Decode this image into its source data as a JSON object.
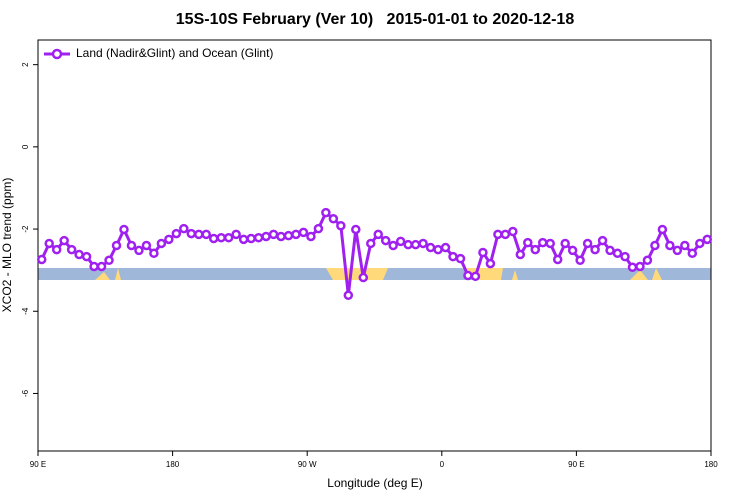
{
  "chart_data": {
    "type": "line",
    "title": "15S-10S February (Ver 10)   2015-01-01 to 2020-12-18",
    "x_label": "Longitude (deg E)",
    "y_label": "XCO2 - MLO trend (ppm)",
    "x": [
      92.5,
      97.5,
      102.5,
      107.5,
      112.5,
      117.5,
      122.5,
      127.5,
      132.5,
      137.5,
      142.5,
      147.5,
      152.5,
      157.5,
      162.5,
      167.5,
      172.5,
      177.5,
      182.5,
      187.5,
      192.5,
      197.5,
      202.5,
      207.5,
      212.5,
      217.5,
      222.5,
      227.5,
      232.5,
      237.5,
      242.5,
      247.5,
      252.5,
      257.5,
      262.5,
      267.5,
      272.5,
      277.5,
      282.5,
      287.5,
      292.5,
      297.5,
      302.5,
      307.5,
      312.5,
      317.5,
      322.5,
      327.5,
      332.5,
      337.5,
      342.5,
      347.5,
      352.5,
      357.5,
      362.5,
      367.5,
      372.5,
      377.5,
      382.5,
      387.5,
      392.5,
      397.5,
      402.5,
      407.5,
      412.5,
      417.5,
      422.5,
      427.5,
      432.5,
      437.5,
      442.5,
      447.5,
      452.5,
      457.5,
      462.5,
      467.5,
      472.5,
      477.5,
      482.5,
      487.5,
      492.5,
      497.5,
      502.5,
      507.5,
      512.5,
      517.5,
      522.5,
      527.5,
      532.5,
      537.5
    ],
    "series": [
      {
        "name": "Land (Nadir&Glint) and Ocean (Glint)",
        "color": "#a020f0",
        "values": [
          -2.74,
          -2.35,
          -2.5,
          -2.28,
          -2.5,
          -2.62,
          -2.67,
          -2.91,
          -2.91,
          -2.76,
          -2.4,
          -2.01,
          -2.4,
          -2.52,
          -2.4,
          -2.59,
          -2.35,
          -2.25,
          -2.11,
          -1.99,
          -2.11,
          -2.13,
          -2.13,
          -2.23,
          -2.21,
          -2.21,
          -2.13,
          -2.25,
          -2.23,
          -2.21,
          -2.18,
          -2.13,
          -2.18,
          -2.16,
          -2.13,
          -2.08,
          -2.18,
          -1.99,
          -1.6,
          -1.75,
          -1.92,
          -3.61,
          -2.01,
          -3.18,
          -2.35,
          -2.13,
          -2.28,
          -2.4,
          -2.3,
          -2.38,
          -2.38,
          -2.35,
          -2.45,
          -2.5,
          -2.45,
          -2.67,
          -2.72,
          -3.13,
          -3.15,
          -2.57,
          -2.84,
          -2.13,
          -2.13,
          -2.06,
          -2.62,
          -2.33,
          -2.5,
          -2.33,
          -2.35,
          -2.74,
          -2.35,
          -2.52,
          -2.76,
          -2.35,
          -2.5,
          -2.28,
          -2.52,
          -2.59,
          -2.67,
          -2.93,
          -2.91,
          -2.76,
          -2.4,
          -2.01,
          -2.4,
          -2.52,
          -2.4,
          -2.59,
          -2.35,
          -2.25
        ]
      }
    ],
    "xlim": [
      90,
      540
    ],
    "ylim": [
      -7.4,
      2.6
    ],
    "xticks": [
      {
        "value": 90,
        "label": "90 E"
      },
      180,
      {
        "value": 270,
        "label": "90 W"
      },
      {
        "value": 360,
        "label": "0"
      },
      {
        "value": 450,
        "label": "90 E"
      },
      {
        "value": 540,
        "label": "180"
      }
    ],
    "yticks": [
      -6,
      -4,
      -2,
      0,
      2
    ],
    "legend": "top-left"
  }
}
